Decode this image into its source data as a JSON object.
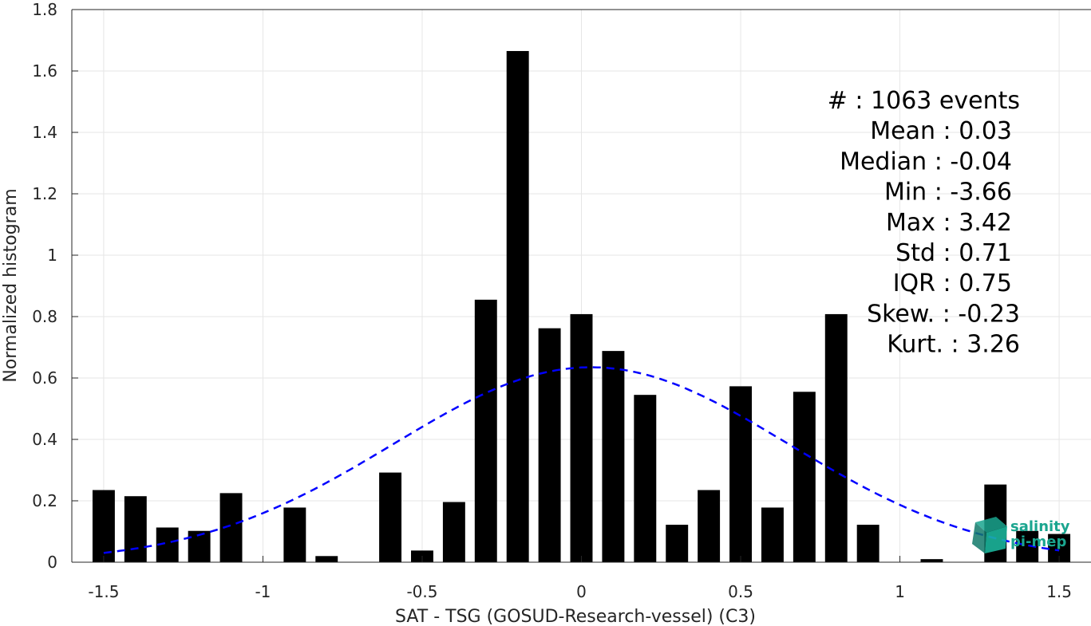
{
  "chart_data": {
    "type": "bar",
    "xlabel": "SAT - TSG (GOSUD-Research-vessel) (C3)",
    "ylabel": "Normalized histogram",
    "xlim": [
      -1.6,
      1.6
    ],
    "ylim": [
      0,
      1.8
    ],
    "xticks": [
      -1.5,
      -1,
      -0.5,
      0,
      0.5,
      1,
      1.5
    ],
    "xtick_labels": [
      "-1.5",
      "-1",
      "-0.5",
      "0",
      "0.5",
      "1",
      "1.5"
    ],
    "yticks": [
      0,
      0.2,
      0.4,
      0.6,
      0.8,
      1,
      1.2,
      1.4,
      1.6,
      1.8
    ],
    "ytick_labels": [
      "0",
      "0.2",
      "0.4",
      "0.6",
      "0.8",
      "1",
      "1.2",
      "1.4",
      "1.6",
      "1.8"
    ],
    "grid": true,
    "bar_width": 0.07,
    "bars": {
      "x": [
        -1.5,
        -1.4,
        -1.3,
        -1.2,
        -1.1,
        -1.0,
        -0.9,
        -0.8,
        -0.7,
        -0.6,
        -0.5,
        -0.4,
        -0.3,
        -0.2,
        -0.1,
        0.0,
        0.1,
        0.2,
        0.3,
        0.4,
        0.5,
        0.6,
        0.7,
        0.8,
        0.9,
        1.0,
        1.1,
        1.2,
        1.3,
        1.4,
        1.5
      ],
      "values": [
        0.235,
        0.215,
        0.113,
        0.102,
        0.225,
        0,
        0.178,
        0.02,
        0,
        0.292,
        0.038,
        0.196,
        0.855,
        1.665,
        0.762,
        0.808,
        0.688,
        0.545,
        0.122,
        0.235,
        0.573,
        0.178,
        0.555,
        0.808,
        0.122,
        0,
        0.01,
        0,
        0.253,
        0.102,
        0.092
      ],
      "color": "#000000"
    },
    "fit_curve": {
      "style": "dashed",
      "color": "#0000ff",
      "mean": 0.03,
      "std": 0.62,
      "peak": 0.635,
      "x_range": [
        -1.5,
        1.5
      ]
    },
    "stats": [
      "#  : 1063 events",
      "Mean : 0.03",
      "Median : -0.04",
      "Min : -3.66",
      "Max : 3.42",
      "Std : 0.71",
      "IQR : 0.75",
      "Skew. : -0.23",
      "Kurt. : 3.26"
    ]
  },
  "logo": {
    "line1": "salinity",
    "line2": "pi-mep",
    "color": "#1aa58f"
  }
}
